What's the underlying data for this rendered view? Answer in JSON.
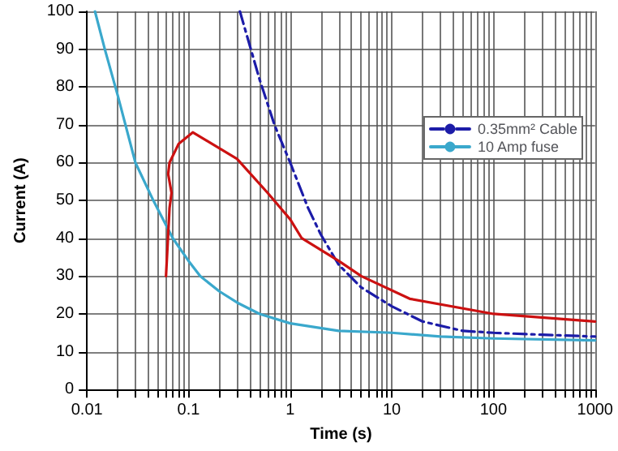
{
  "chart_data": {
    "type": "line",
    "xlabel": "Time (s)",
    "ylabel": "Current (A)",
    "log": "x",
    "grid": true,
    "legend": "right",
    "marker": "none",
    "xlim": [
      0.01,
      1000
    ],
    "ylim": [
      0,
      100
    ],
    "yticks": [
      0,
      10,
      20,
      30,
      40,
      50,
      60,
      70,
      80,
      90,
      100
    ],
    "xticks": [
      0.01,
      {
        "value": 0.02,
        "label": null
      },
      {
        "value": 0.03,
        "label": null
      },
      {
        "value": 0.04,
        "label": null
      },
      {
        "value": 0.05,
        "label": null
      },
      {
        "value": 0.06,
        "label": null
      },
      {
        "value": 0.07,
        "label": null
      },
      {
        "value": 0.08,
        "label": null
      },
      {
        "value": 0.09,
        "label": null
      },
      0.1,
      {
        "value": 0.2,
        "label": null
      },
      {
        "value": 0.3,
        "label": null
      },
      {
        "value": 0.4,
        "label": null
      },
      {
        "value": 0.5,
        "label": null
      },
      {
        "value": 0.6,
        "label": null
      },
      {
        "value": 0.7,
        "label": null
      },
      {
        "value": 0.8,
        "label": null
      },
      {
        "value": 0.9,
        "label": null
      },
      1,
      {
        "value": 2,
        "label": null
      },
      {
        "value": 3,
        "label": null
      },
      {
        "value": 4,
        "label": null
      },
      {
        "value": 5,
        "label": null
      },
      {
        "value": 6,
        "label": null
      },
      {
        "value": 7,
        "label": null
      },
      {
        "value": 8,
        "label": null
      },
      {
        "value": 9,
        "label": null
      },
      10,
      {
        "value": 20,
        "label": null
      },
      {
        "value": 30,
        "label": null
      },
      {
        "value": 40,
        "label": null
      },
      {
        "value": 50,
        "label": null
      },
      {
        "value": 60,
        "label": null
      },
      {
        "value": 70,
        "label": null
      },
      {
        "value": 80,
        "label": null
      },
      {
        "value": 90,
        "label": null
      },
      100,
      {
        "value": 200,
        "label": null
      },
      {
        "value": 300,
        "label": null
      },
      {
        "value": 400,
        "label": null
      },
      {
        "value": 500,
        "label": null
      },
      {
        "value": 600,
        "label": null
      },
      {
        "value": 700,
        "label": null
      },
      {
        "value": 800,
        "label": null
      },
      {
        "value": 900,
        "label": null
      },
      1000
    ],
    "series": [
      {
        "name": "0.35mm² Cable",
        "color": "#1c1ca8",
        "line_style": "dashed",
        "x": [
          0.32,
          0.5,
          0.7,
          1,
          1.5,
          2,
          3,
          5,
          10,
          20,
          50,
          100,
          300,
          1000
        ],
        "values": [
          100,
          82,
          70,
          60,
          48,
          41,
          33,
          27,
          22,
          18,
          15.5,
          15,
          14.5,
          14
        ]
      },
      {
        "name": "10 Amp fuse",
        "color": "#3aa8cc",
        "line_style": "solid",
        "x": [
          0.012,
          0.015,
          0.02,
          0.03,
          0.045,
          0.07,
          0.1,
          0.13,
          0.2,
          0.3,
          0.5,
          1,
          3,
          10,
          30,
          100,
          1000
        ],
        "values": [
          100,
          90,
          78,
          60,
          50,
          40,
          34,
          30,
          26,
          23,
          20,
          17.5,
          15.5,
          15,
          14,
          13.5,
          13
        ]
      },
      {
        "color": "#cc1111",
        "line_style": "solid",
        "x": [
          0.06,
          0.065,
          0.068,
          0.063,
          0.065,
          0.08,
          0.11,
          0.3,
          0.6,
          1,
          1.3,
          3,
          5,
          15,
          100,
          1000
        ],
        "values": [
          30,
          48,
          52,
          57,
          60,
          65,
          68,
          61,
          52,
          45,
          40,
          34,
          30,
          24,
          20,
          18
        ]
      }
    ]
  }
}
